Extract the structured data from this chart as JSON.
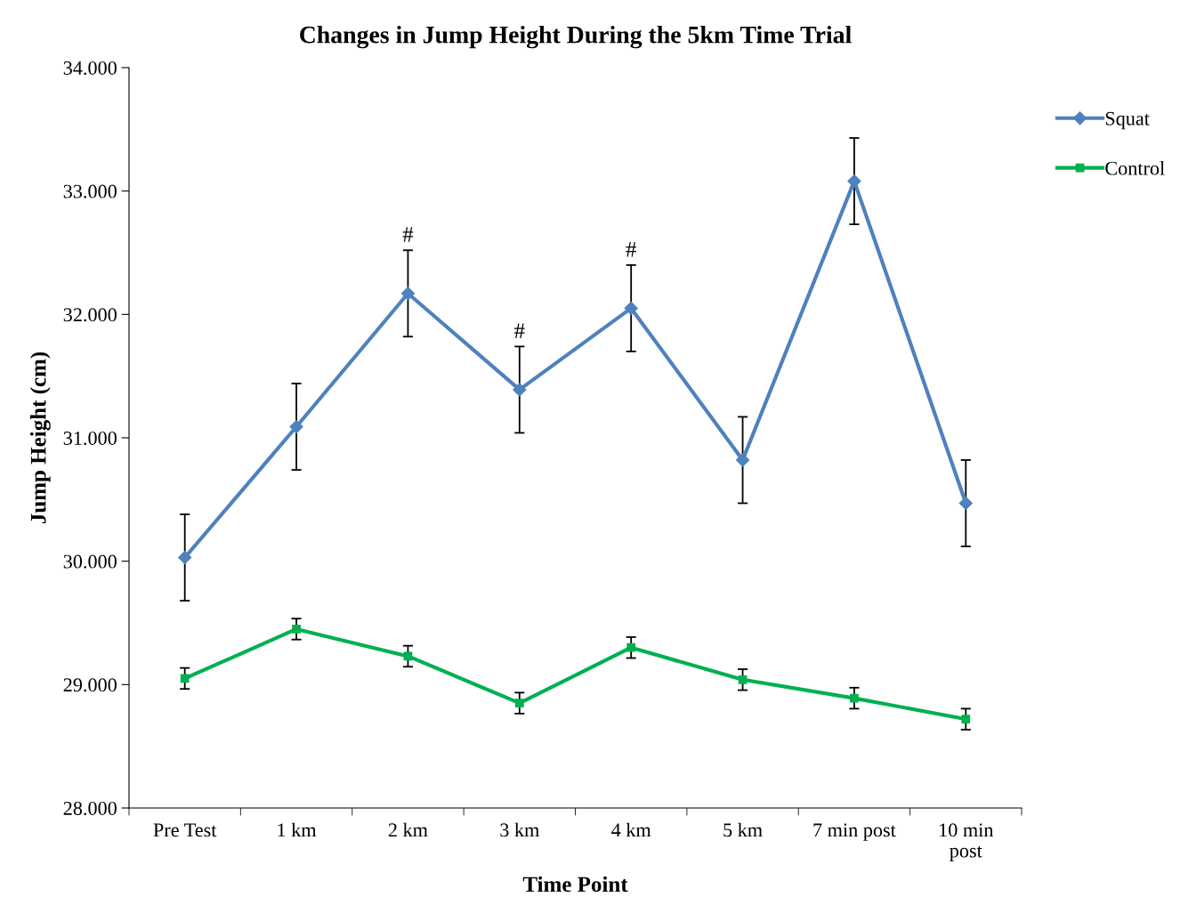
{
  "chart_data": {
    "type": "line",
    "title": "Changes in Jump Height During the 5km Time Trial",
    "xlabel": "Time Point",
    "ylabel": "Jump Height (cm)",
    "categories": [
      "Pre Test",
      "1 km",
      "2 km",
      "3 km",
      "4 km",
      "5 km",
      "7 min post",
      "10 min\npost"
    ],
    "series": [
      {
        "name": "Squat",
        "color": "#4f81bd",
        "marker": "diamond",
        "values": [
          30.03,
          31.09,
          32.17,
          31.39,
          32.05,
          30.82,
          33.08,
          30.47
        ],
        "errors": [
          0.35,
          0.35,
          0.35,
          0.35,
          0.35,
          0.35,
          0.35,
          0.35
        ]
      },
      {
        "name": "Control",
        "color": "#00b050",
        "marker": "square",
        "values": [
          29.05,
          29.45,
          29.23,
          28.85,
          29.3,
          29.04,
          28.89,
          28.72
        ],
        "errors": [
          0.085,
          0.085,
          0.085,
          0.085,
          0.085,
          0.085,
          0.085,
          0.085
        ]
      }
    ],
    "ylim": [
      28,
      34
    ],
    "yticks": [
      {
        "value": 28,
        "label": "28.000"
      },
      {
        "value": 29,
        "label": "29.000"
      },
      {
        "value": 30,
        "label": "30.000"
      },
      {
        "value": 31,
        "label": "31.000"
      },
      {
        "value": 32,
        "label": "32.000"
      },
      {
        "value": 33,
        "label": "33.000"
      },
      {
        "value": 34,
        "label": "34.000"
      }
    ],
    "annotations": [
      {
        "text": "#",
        "x": "2 km",
        "y": 32.52
      },
      {
        "text": "#",
        "x": "3 km",
        "y": 31.74
      },
      {
        "text": "#",
        "x": "4 km",
        "y": 32.4
      }
    ],
    "legend": "right",
    "grid": false,
    "line_style": "solid"
  }
}
